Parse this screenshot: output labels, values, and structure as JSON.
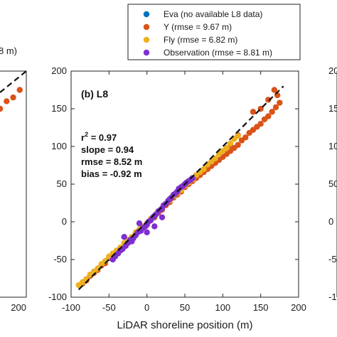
{
  "chart_data": [
    {
      "panel": "left (clipped)",
      "type": "scatter",
      "xlim": [
        -100,
        200
      ],
      "ylim": [
        -100,
        200
      ],
      "xticks": [
        "200"
      ],
      "legend_partial": "8 m)",
      "series": [
        {
          "color": "#d95319",
          "x": [
            120,
            135,
            150,
            160,
            170,
            180,
            190
          ],
          "y": [
            112,
            130,
            140,
            150,
            160,
            165,
            175
          ]
        }
      ]
    },
    {
      "panel": "center",
      "type": "scatter",
      "title": "(b) L8",
      "xlabel": "LiDAR shoreline position (m)",
      "ylabel": "",
      "xlim": [
        -100,
        200
      ],
      "ylim": [
        -100,
        200
      ],
      "xticks": [
        "-100",
        "-50",
        "0",
        "50",
        "100",
        "150",
        "200"
      ],
      "yticks": [
        "-100",
        "-50",
        "0",
        "50",
        "100",
        "150",
        "200"
      ],
      "grid": false,
      "reference_line": "1:1 dashed",
      "stats": [
        "r",
        "2",
        " = 0.97",
        "slope = 0.94",
        "rmse = 8.52 m",
        "bias = -0.92 m"
      ],
      "series": [
        {
          "name": "Y (rmse = 9.67 m)",
          "color": "#d95319",
          "x": [
            -85,
            -80,
            -75,
            -70,
            -65,
            -60,
            -55,
            -50,
            -45,
            -40,
            -35,
            -30,
            -25,
            -20,
            -15,
            -10,
            -5,
            0,
            5,
            10,
            15,
            20,
            25,
            30,
            35,
            40,
            45,
            50,
            55,
            60,
            65,
            70,
            75,
            80,
            85,
            90,
            95,
            100,
            105,
            110,
            115,
            120,
            125,
            130,
            135,
            140,
            145,
            150,
            155,
            160,
            165,
            170,
            175,
            172,
            168,
            160,
            150,
            140,
            120,
            110
          ],
          "y": [
            -82,
            -78,
            -72,
            -68,
            -64,
            -58,
            -55,
            -48,
            -46,
            -40,
            -36,
            -32,
            -28,
            -22,
            -18,
            -12,
            -8,
            -4,
            2,
            6,
            12,
            16,
            22,
            26,
            32,
            36,
            40,
            46,
            50,
            54,
            58,
            62,
            66,
            70,
            74,
            78,
            82,
            86,
            90,
            94,
            98,
            102,
            108,
            112,
            118,
            122,
            126,
            130,
            136,
            140,
            146,
            152,
            158,
            168,
            175,
            162,
            150,
            146,
            115,
            102
          ]
        },
        {
          "name": "Fly (rmse = 6.82 m)",
          "color": "#edb120",
          "x": [
            -90,
            -85,
            -80,
            -75,
            -70,
            -65,
            -60,
            -55,
            -50,
            -45,
            -40,
            -35,
            -30,
            -25,
            -20,
            -15,
            -10,
            -5,
            0,
            5,
            10,
            15,
            20,
            25,
            30,
            35,
            40,
            45,
            50,
            55,
            60,
            65,
            70,
            75,
            80,
            85,
            90,
            95,
            100,
            105,
            110,
            115,
            120
          ],
          "y": [
            -84,
            -80,
            -76,
            -70,
            -66,
            -62,
            -56,
            -52,
            -46,
            -42,
            -38,
            -34,
            -28,
            -24,
            -20,
            -14,
            -10,
            -6,
            -2,
            4,
            8,
            14,
            18,
            24,
            28,
            34,
            38,
            42,
            48,
            52,
            56,
            62,
            66,
            70,
            76,
            80,
            84,
            90,
            94,
            98,
            104,
            110,
            114
          ]
        },
        {
          "name": "Observation (rmse = 8.81 m)",
          "color": "#7e2fd0",
          "x": [
            -45,
            -42,
            -38,
            -35,
            -32,
            -28,
            -25,
            -22,
            -18,
            -15,
            -12,
            -8,
            -5,
            -2,
            0,
            2,
            5,
            8,
            10,
            12,
            15,
            18,
            20,
            22,
            25,
            28,
            30,
            32,
            35,
            38,
            40,
            42,
            45,
            48,
            50,
            52,
            55,
            58,
            60,
            -30,
            -20,
            -10,
            0,
            10,
            20
          ],
          "y": [
            -50,
            -46,
            -42,
            -38,
            -36,
            -32,
            -28,
            -24,
            -22,
            -18,
            -14,
            -12,
            -8,
            -6,
            -3,
            0,
            2,
            6,
            8,
            10,
            14,
            16,
            18,
            22,
            24,
            28,
            30,
            32,
            36,
            38,
            40,
            44,
            46,
            48,
            50,
            52,
            54,
            56,
            58,
            -20,
            -26,
            -2,
            -14,
            -6,
            6
          ]
        }
      ]
    },
    {
      "panel": "right (clipped)",
      "type": "scatter",
      "yticks": [
        "200",
        "150",
        "100",
        "50",
        "0",
        "-50",
        "-100"
      ]
    }
  ],
  "legend": {
    "items": [
      {
        "label": "Eva (no available L8 data)",
        "color": "#0072bd"
      },
      {
        "label": "Y (rmse = 9.67 m)",
        "color": "#d95319"
      },
      {
        "label": "Fly (rmse = 6.82 m)",
        "color": "#edb120"
      },
      {
        "label": "Observation (rmse = 8.81 m)",
        "color": "#7e2fd0"
      }
    ]
  }
}
